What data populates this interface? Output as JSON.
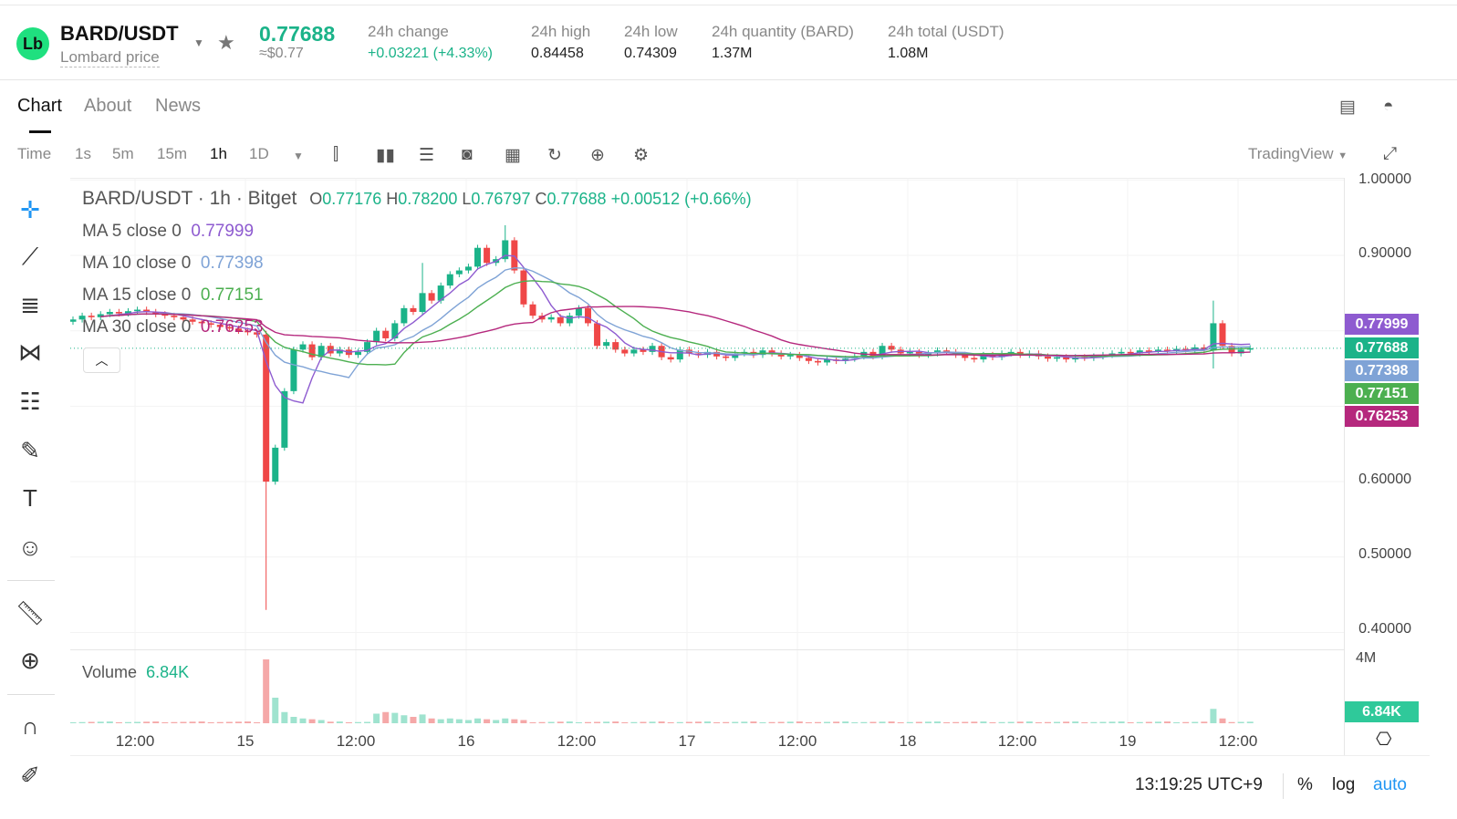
{
  "header": {
    "pair": "BARD/USDT",
    "subtitle": "Lombard price",
    "logo": "Lb",
    "price": "0.77688",
    "usd": "≈$0.77",
    "stats": [
      {
        "label": "24h change",
        "value": "+0.03221 (+4.33%)",
        "positive": true
      },
      {
        "label": "24h high",
        "value": "0.84458"
      },
      {
        "label": "24h low",
        "value": "0.74309"
      },
      {
        "label": "24h quantity (BARD)",
        "value": "1.37M"
      },
      {
        "label": "24h total (USDT)",
        "value": "1.08M"
      }
    ]
  },
  "tabs": [
    "Chart",
    "About",
    "News"
  ],
  "toolbar": {
    "intervals": [
      "Time",
      "1s",
      "5m",
      "15m",
      "1h",
      "1D"
    ],
    "active": "1h",
    "provider": "TradingView"
  },
  "legend": {
    "title": "BARD/USDT · 1h · Bitget",
    "o": "0.77176",
    "h": "0.78200",
    "l": "0.76797",
    "c": "0.77688",
    "change": "+0.00512 (+0.66%)",
    "ma": [
      {
        "label": "MA 5 close 0",
        "value": "0.77999",
        "color": "#8e5bd0"
      },
      {
        "label": "MA 10 close 0",
        "value": "0.77398",
        "color": "#7fa3d6"
      },
      {
        "label": "MA 15 close 0",
        "value": "0.77151",
        "color": "#4caf50"
      },
      {
        "label": "MA 30 close 0",
        "value": "0.76253",
        "color": "#b5287d"
      }
    ],
    "volume_label": "Volume",
    "volume_value": "6.84K"
  },
  "price_axis": {
    "ticks": [
      "1.00000",
      "0.90000",
      "0.60000",
      "0.50000",
      "0.40000"
    ],
    "labels": [
      {
        "value": "0.77999",
        "color": "#8e5bd0"
      },
      {
        "value": "0.77688",
        "color": "#1bb389"
      },
      {
        "value": "0.77398",
        "color": "#7fa3d6"
      },
      {
        "value": "0.77151",
        "color": "#4caf50"
      },
      {
        "value": "0.76253",
        "color": "#b5287d"
      }
    ],
    "volume_top": "4M",
    "volume_last": "6.84K"
  },
  "time_axis": [
    "12:00",
    "15",
    "12:00",
    "16",
    "12:00",
    "17",
    "12:00",
    "18",
    "12:00",
    "19",
    "12:00"
  ],
  "status": {
    "time": "13:19:25 UTC+9",
    "percent": "%",
    "log": "log",
    "auto": "auto"
  },
  "chart_data": {
    "type": "candlestick",
    "ylim": [
      0.4,
      1.0
    ],
    "last": 0.77688,
    "closes": [
      0.815,
      0.82,
      0.818,
      0.822,
      0.825,
      0.823,
      0.826,
      0.828,
      0.825,
      0.822,
      0.82,
      0.818,
      0.815,
      0.812,
      0.81,
      0.808,
      0.805,
      0.803,
      0.8,
      0.798,
      0.795,
      0.6,
      0.645,
      0.72,
      0.775,
      0.782,
      0.765,
      0.78,
      0.77,
      0.775,
      0.768,
      0.772,
      0.785,
      0.8,
      0.79,
      0.81,
      0.83,
      0.825,
      0.85,
      0.84,
      0.86,
      0.875,
      0.88,
      0.885,
      0.91,
      0.89,
      0.895,
      0.92,
      0.88,
      0.835,
      0.82,
      0.815,
      0.818,
      0.81,
      0.82,
      0.83,
      0.81,
      0.78,
      0.785,
      0.775,
      0.77,
      0.775,
      0.772,
      0.78,
      0.765,
      0.762,
      0.775,
      0.77,
      0.768,
      0.772,
      0.766,
      0.764,
      0.77,
      0.772,
      0.768,
      0.774,
      0.77,
      0.766,
      0.768,
      0.764,
      0.76,
      0.758,
      0.762,
      0.76,
      0.763,
      0.766,
      0.772,
      0.766,
      0.78,
      0.775,
      0.77,
      0.772,
      0.768,
      0.77,
      0.774,
      0.772,
      0.768,
      0.764,
      0.762,
      0.768,
      0.765,
      0.77,
      0.772,
      0.768,
      0.77,
      0.766,
      0.763,
      0.765,
      0.762,
      0.765,
      0.764,
      0.766,
      0.768,
      0.77,
      0.772,
      0.77,
      0.774,
      0.772,
      0.775,
      0.773,
      0.776,
      0.775,
      0.778,
      0.774,
      0.81,
      0.78,
      0.77,
      0.775,
      0.77688
    ],
    "spikes": {
      "21": {
        "high": 0.8,
        "low": 0.43
      },
      "38": {
        "high": 0.89
      },
      "47": {
        "high": 0.94
      },
      "124": {
        "high": 0.84,
        "low": 0.75
      }
    },
    "volumes_k": {
      "21": 4000,
      "22": 1600,
      "23": 700,
      "24": 400,
      "25": 300,
      "26": 250,
      "27": 200,
      "33": 600,
      "34": 700,
      "35": 650,
      "36": 500,
      "37": 400,
      "38": 550,
      "39": 300,
      "40": 250,
      "41": 300,
      "42": 250,
      "43": 200,
      "44": 300,
      "45": 250,
      "46": 200,
      "47": 300,
      "48": 250,
      "49": 200,
      "124": 900,
      "125": 300
    },
    "volume_base_k": 60
  }
}
